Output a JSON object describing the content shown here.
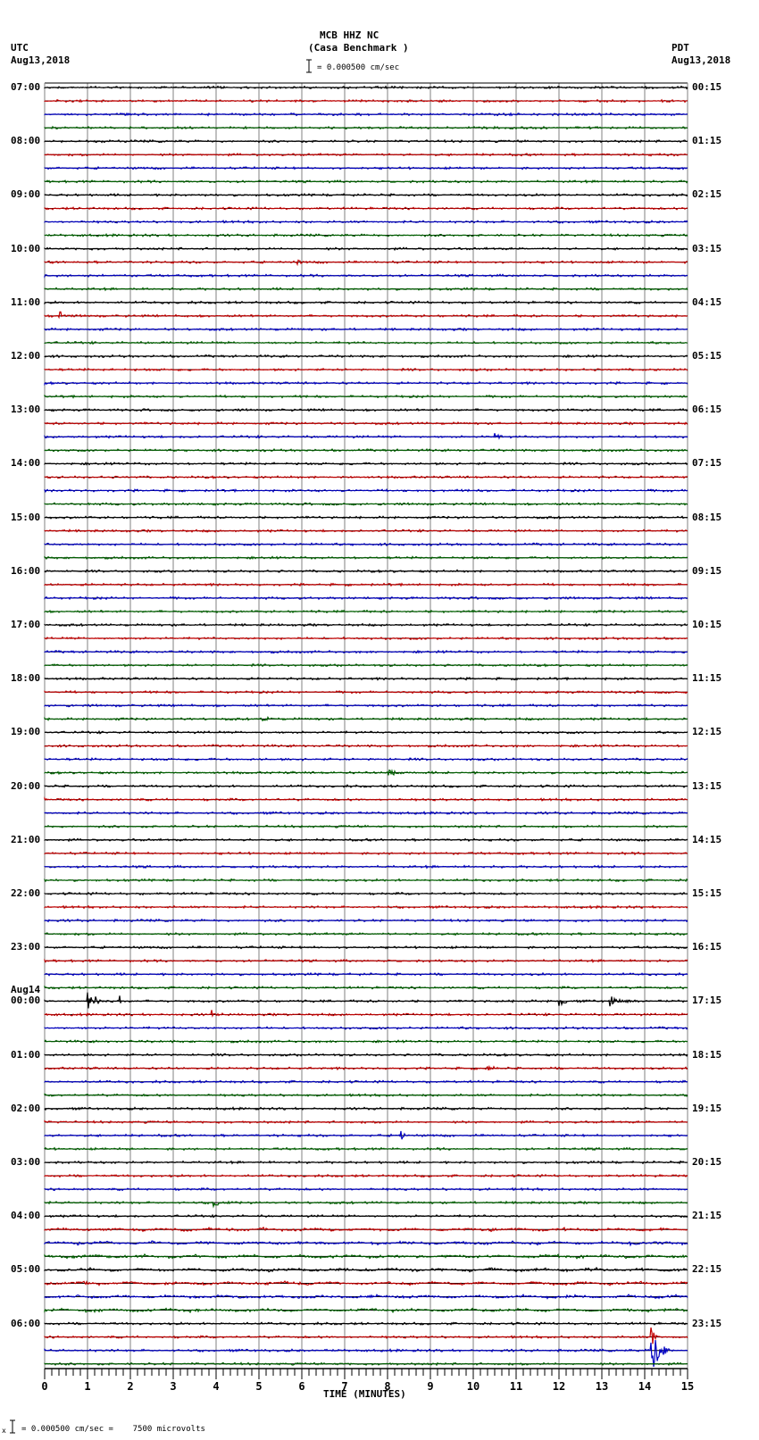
{
  "header": {
    "station": "MCB HHZ NC",
    "site": "(Casa Benchmark )",
    "scale": "= 0.000500 cm/sec",
    "left_tz": "UTC",
    "left_date": "Aug13,2018",
    "right_tz": "PDT",
    "right_date": "Aug13,2018"
  },
  "footer": {
    "scale_text": "= 0.000500 cm/sec =    7500 microvolts"
  },
  "colors": {
    "trace_cycle": [
      "#000000",
      "#c00000",
      "#0000c0",
      "#006000"
    ],
    "grid": "#808080",
    "baseline": "#000000"
  },
  "chart_data": {
    "type": "line",
    "title": "MCB HHZ NC (Casa Benchmark )",
    "xlabel": "TIME (MINUTES)",
    "ylabel": "",
    "xlim": [
      0,
      15
    ],
    "x_ticks": [
      "0",
      "1",
      "2",
      "3",
      "4",
      "5",
      "6",
      "7",
      "8",
      "9",
      "10",
      "11",
      "12",
      "13",
      "14",
      "15"
    ],
    "traces_per_hour": 4,
    "trace_count": 96,
    "grid": true,
    "left_labels": [
      {
        "row": 0,
        "text": "07:00"
      },
      {
        "row": 4,
        "text": "08:00"
      },
      {
        "row": 8,
        "text": "09:00"
      },
      {
        "row": 12,
        "text": "10:00"
      },
      {
        "row": 16,
        "text": "11:00"
      },
      {
        "row": 20,
        "text": "12:00"
      },
      {
        "row": 24,
        "text": "13:00"
      },
      {
        "row": 28,
        "text": "14:00"
      },
      {
        "row": 32,
        "text": "15:00"
      },
      {
        "row": 36,
        "text": "16:00"
      },
      {
        "row": 40,
        "text": "17:00"
      },
      {
        "row": 44,
        "text": "18:00"
      },
      {
        "row": 48,
        "text": "19:00"
      },
      {
        "row": 52,
        "text": "20:00"
      },
      {
        "row": 56,
        "text": "21:00"
      },
      {
        "row": 60,
        "text": "22:00"
      },
      {
        "row": 64,
        "text": "23:00"
      },
      {
        "row": 68,
        "text": "Aug14\n00:00"
      },
      {
        "row": 72,
        "text": "01:00"
      },
      {
        "row": 76,
        "text": "02:00"
      },
      {
        "row": 80,
        "text": "03:00"
      },
      {
        "row": 84,
        "text": "04:00"
      },
      {
        "row": 88,
        "text": "05:00"
      },
      {
        "row": 92,
        "text": "06:00"
      }
    ],
    "right_labels": [
      {
        "row": 0,
        "text": "00:15"
      },
      {
        "row": 4,
        "text": "01:15"
      },
      {
        "row": 8,
        "text": "02:15"
      },
      {
        "row": 12,
        "text": "03:15"
      },
      {
        "row": 16,
        "text": "04:15"
      },
      {
        "row": 20,
        "text": "05:15"
      },
      {
        "row": 24,
        "text": "06:15"
      },
      {
        "row": 28,
        "text": "07:15"
      },
      {
        "row": 32,
        "text": "08:15"
      },
      {
        "row": 36,
        "text": "09:15"
      },
      {
        "row": 40,
        "text": "10:15"
      },
      {
        "row": 44,
        "text": "11:15"
      },
      {
        "row": 48,
        "text": "12:15"
      },
      {
        "row": 52,
        "text": "13:15"
      },
      {
        "row": 56,
        "text": "14:15"
      },
      {
        "row": 60,
        "text": "15:15"
      },
      {
        "row": 64,
        "text": "16:15"
      },
      {
        "row": 68,
        "text": "17:15"
      },
      {
        "row": 72,
        "text": "18:15"
      },
      {
        "row": 76,
        "text": "19:15"
      },
      {
        "row": 80,
        "text": "20:15"
      },
      {
        "row": 84,
        "text": "21:15"
      },
      {
        "row": 88,
        "text": "22:15"
      },
      {
        "row": 92,
        "text": "23:15"
      }
    ],
    "events": [
      {
        "row": 13,
        "minute": 5.9,
        "amp": 5,
        "dur": 0.15
      },
      {
        "row": 17,
        "minute": 0.35,
        "amp": 7,
        "dur": 0.2
      },
      {
        "row": 26,
        "minute": 10.5,
        "amp": 6,
        "dur": 0.2
      },
      {
        "row": 47,
        "minute": 5.1,
        "amp": 4,
        "dur": 0.4
      },
      {
        "row": 51,
        "minute": 8.0,
        "amp": 4,
        "dur": 0.6
      },
      {
        "row": 68,
        "minute": 1.0,
        "amp": 12,
        "dur": 0.5
      },
      {
        "row": 68,
        "minute": 1.75,
        "amp": 8,
        "dur": 0.05
      },
      {
        "row": 68,
        "minute": 13.2,
        "amp": 6,
        "dur": 0.6
      },
      {
        "row": 68,
        "minute": 12.0,
        "amp": 5,
        "dur": 0.3
      },
      {
        "row": 69,
        "minute": 3.9,
        "amp": 4,
        "dur": 0.3
      },
      {
        "row": 73,
        "minute": 10.3,
        "amp": 3,
        "dur": 0.3
      },
      {
        "row": 78,
        "minute": 8.3,
        "amp": 14,
        "dur": 0.15
      },
      {
        "row": 83,
        "minute": 3.9,
        "amp": 4,
        "dur": 0.5
      },
      {
        "row": 93,
        "minute": 14.15,
        "amp": 18,
        "dur": 0.2
      },
      {
        "row": 94,
        "minute": 14.15,
        "amp": 26,
        "dur": 0.45
      }
    ]
  }
}
